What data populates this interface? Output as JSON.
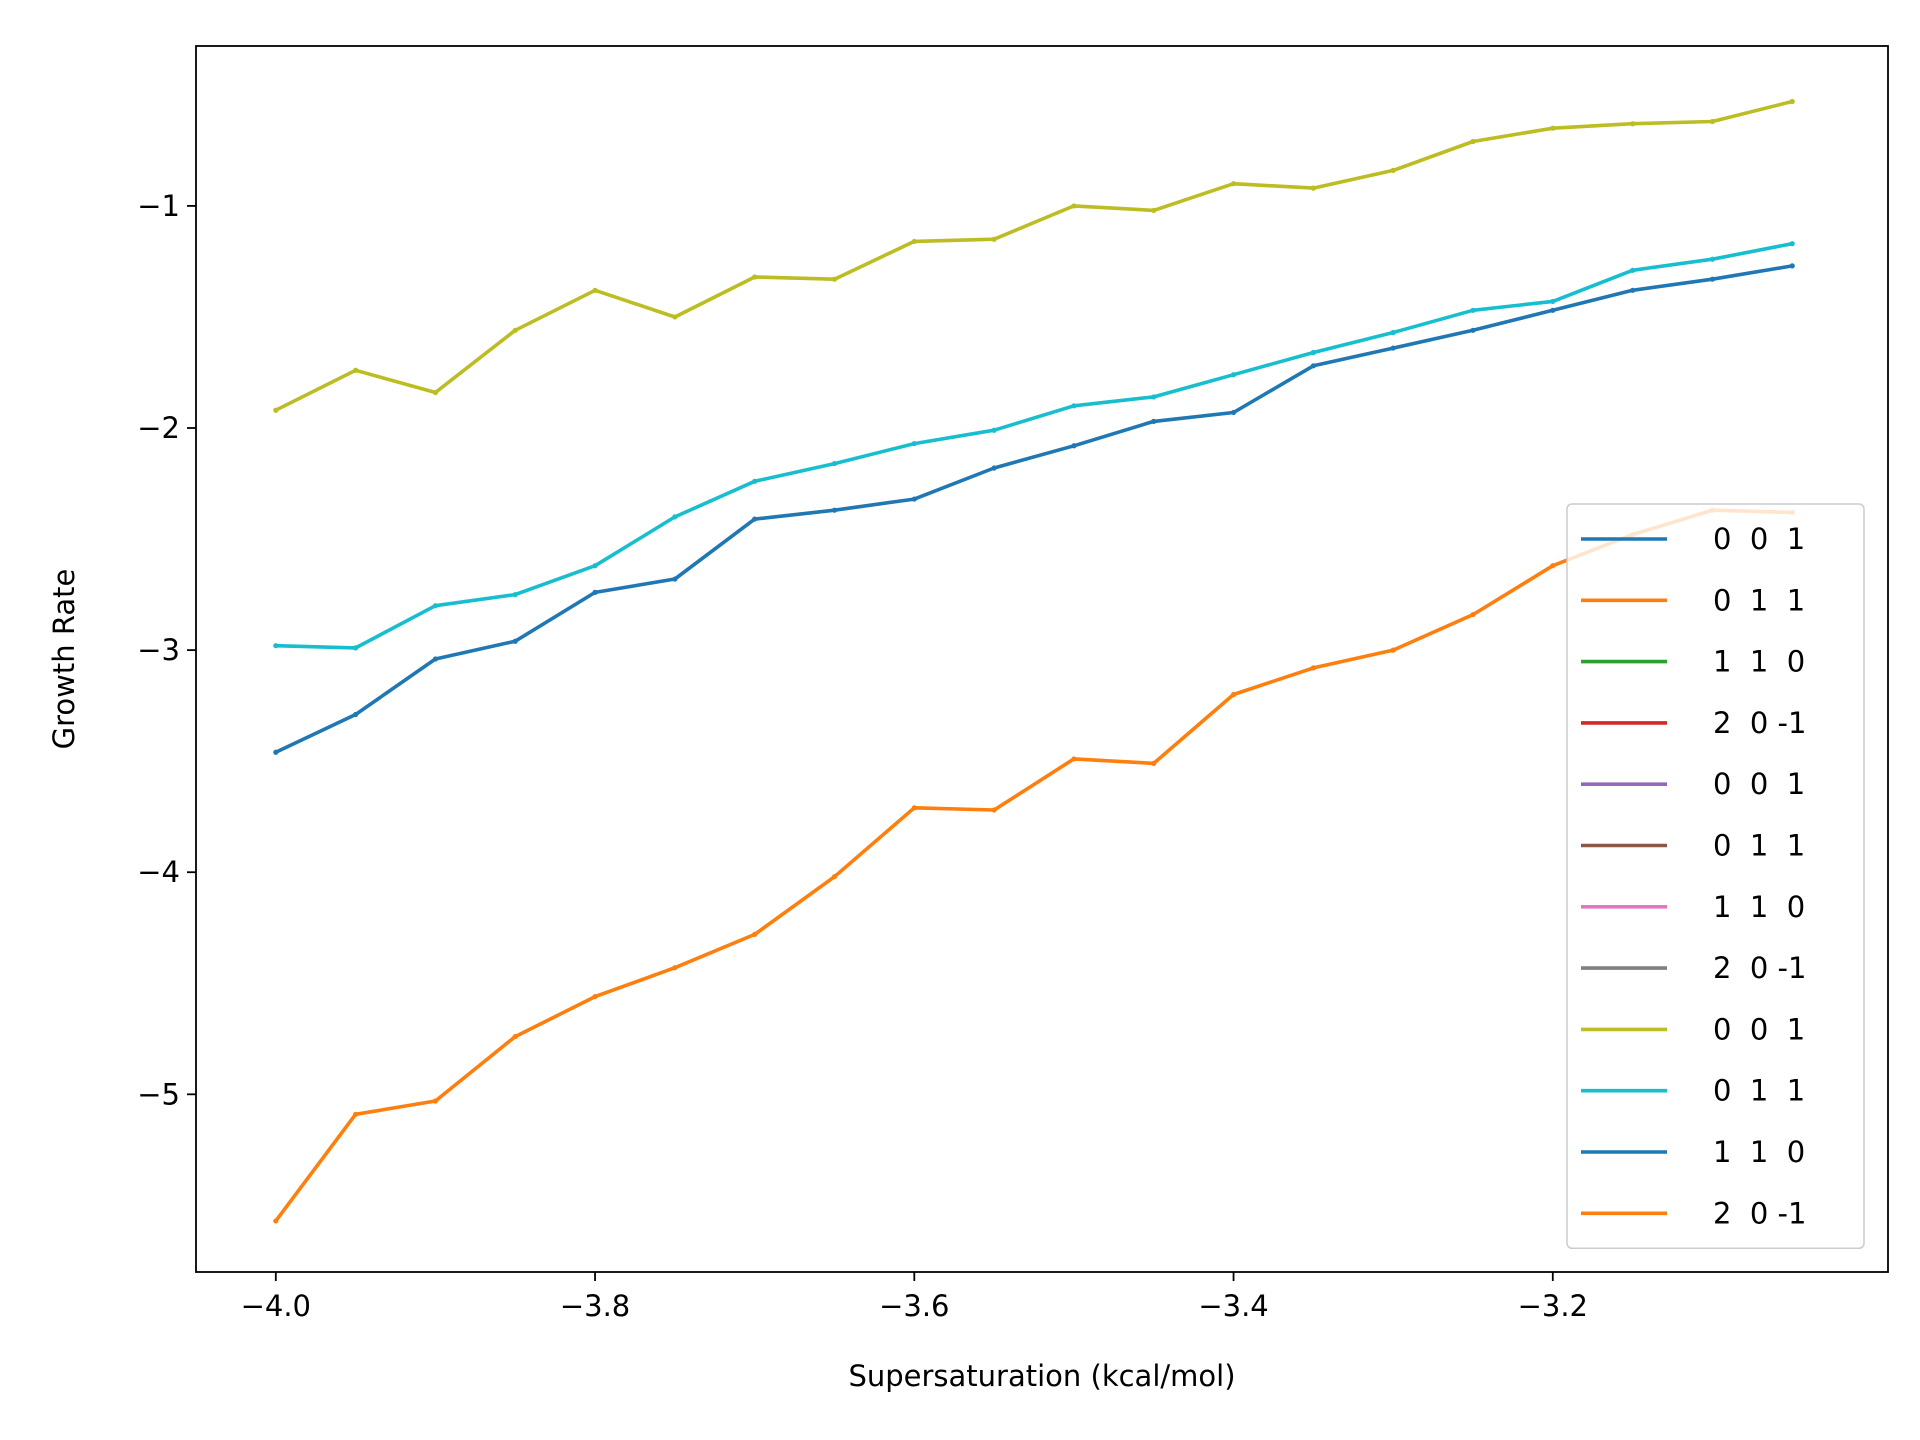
{
  "chart_data": {
    "type": "line",
    "title": "",
    "xlabel": "Supersaturation (kcal/mol)",
    "ylabel": "Growth Rate",
    "xlim": [
      -4.05,
      -2.99
    ],
    "ylim": [
      -5.8,
      -0.28
    ],
    "xticks": [
      -4.0,
      -3.8,
      -3.6,
      -3.4,
      -3.2
    ],
    "xtick_labels": [
      "−4.0",
      "−3.8",
      "−3.6",
      "−3.4",
      "−3.2"
    ],
    "yticks": [
      -1,
      -2,
      -3,
      -4,
      -5
    ],
    "ytick_labels": [
      "−1",
      "−2",
      "−3",
      "−4",
      "−5"
    ],
    "grid": false,
    "legend_position": "lower-right",
    "x": [
      -4.0,
      -3.95,
      -3.9,
      -3.85,
      -3.8,
      -3.75,
      -3.7,
      -3.65,
      -3.6,
      -3.55,
      -3.5,
      -3.45,
      -3.4,
      -3.35,
      -3.3,
      -3.25,
      -3.2,
      -3.15,
      -3.1,
      -3.05
    ],
    "series": [
      {
        "name": "0  0  1",
        "color": "#1f77b4",
        "values": null
      },
      {
        "name": "0  1  1",
        "color": "#ff7f0e",
        "values": null
      },
      {
        "name": "1  1  0",
        "color": "#2ca02c",
        "values": null
      },
      {
        "name": "2  0 -1",
        "color": "#d62728",
        "values": null
      },
      {
        "name": "0  0  1",
        "color": "#9467bd",
        "values": null
      },
      {
        "name": "0  1  1",
        "color": "#8c564b",
        "values": null
      },
      {
        "name": "1  1  0",
        "color": "#e377c2",
        "values": null
      },
      {
        "name": "2  0 -1",
        "color": "#7f7f7f",
        "values": null
      },
      {
        "name": "0  0  1",
        "color": "#bcbd22",
        "values": [
          -1.92,
          -1.74,
          -1.84,
          -1.56,
          -1.38,
          -1.5,
          -1.32,
          -1.33,
          -1.16,
          -1.15,
          -1.0,
          -1.02,
          -0.9,
          -0.92,
          -0.84,
          -0.71,
          -0.65,
          -0.63,
          -0.62,
          -0.53
        ]
      },
      {
        "name": "0  1  1",
        "color": "#17becf",
        "values": [
          -2.98,
          -2.99,
          -2.8,
          -2.75,
          -2.62,
          -2.4,
          -2.24,
          -2.16,
          -2.07,
          -2.01,
          -1.9,
          -1.86,
          -1.76,
          -1.66,
          -1.57,
          -1.47,
          -1.43,
          -1.29,
          -1.24,
          -1.17
        ]
      },
      {
        "name": "1  1  0",
        "color": "#1f77b4",
        "values": [
          -3.46,
          -3.29,
          -3.04,
          -2.96,
          -2.74,
          -2.68,
          -2.41,
          -2.37,
          -2.32,
          -2.18,
          -2.08,
          -1.97,
          -1.93,
          -1.72,
          -1.64,
          -1.56,
          -1.47,
          -1.38,
          -1.33,
          -1.27
        ]
      },
      {
        "name": "2  0 -1",
        "color": "#ff7f0e",
        "values": [
          -5.57,
          -5.09,
          -5.03,
          -4.74,
          -4.56,
          -4.43,
          -4.28,
          -4.02,
          -3.71,
          -3.72,
          -3.49,
          -3.51,
          -3.2,
          -3.08,
          -3.0,
          -2.84,
          -2.62,
          -2.48,
          -2.37,
          -2.38
        ]
      }
    ]
  }
}
